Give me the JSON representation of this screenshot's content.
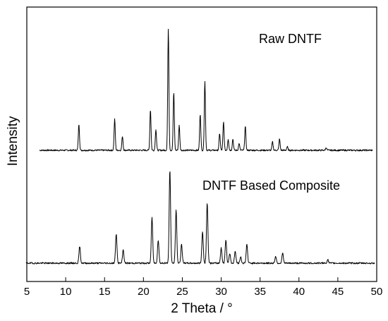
{
  "chart_data": {
    "type": "line",
    "xlabel": "2 Theta / °",
    "ylabel": "Intensity",
    "xlim": [
      5,
      50
    ],
    "x_ticks": [
      "5",
      "10",
      "15",
      "20",
      "25",
      "30",
      "35",
      "40",
      "45",
      "50"
    ],
    "y_ticks_shown": false,
    "grid": false,
    "annotations": [
      "Raw DNTF",
      "DNTF Based Composite"
    ],
    "series": [
      {
        "name": "Raw DNTF",
        "baseline": 0,
        "peaks": [
          {
            "x": 11.7,
            "y": 37
          },
          {
            "x": 16.3,
            "y": 44
          },
          {
            "x": 17.3,
            "y": 20
          },
          {
            "x": 20.9,
            "y": 58
          },
          {
            "x": 21.6,
            "y": 30
          },
          {
            "x": 23.2,
            "y": 172
          },
          {
            "x": 23.9,
            "y": 82
          },
          {
            "x": 24.6,
            "y": 35
          },
          {
            "x": 27.3,
            "y": 52
          },
          {
            "x": 27.9,
            "y": 98
          },
          {
            "x": 29.8,
            "y": 24
          },
          {
            "x": 30.3,
            "y": 40
          },
          {
            "x": 30.9,
            "y": 16
          },
          {
            "x": 31.5,
            "y": 16
          },
          {
            "x": 32.3,
            "y": 10
          },
          {
            "x": 33.1,
            "y": 34
          },
          {
            "x": 36.6,
            "y": 12
          },
          {
            "x": 37.5,
            "y": 16
          },
          {
            "x": 38.5,
            "y": 5
          },
          {
            "x": 43.5,
            "y": 4
          }
        ]
      },
      {
        "name": "DNTF Based Composite",
        "baseline": 0,
        "peaks": [
          {
            "x": 11.8,
            "y": 24
          },
          {
            "x": 16.5,
            "y": 42
          },
          {
            "x": 17.4,
            "y": 19
          },
          {
            "x": 21.1,
            "y": 65
          },
          {
            "x": 21.9,
            "y": 33
          },
          {
            "x": 23.4,
            "y": 133
          },
          {
            "x": 24.2,
            "y": 75
          },
          {
            "x": 24.9,
            "y": 27
          },
          {
            "x": 27.6,
            "y": 45
          },
          {
            "x": 28.2,
            "y": 86
          },
          {
            "x": 30.0,
            "y": 22
          },
          {
            "x": 30.6,
            "y": 33
          },
          {
            "x": 31.1,
            "y": 14
          },
          {
            "x": 31.8,
            "y": 17
          },
          {
            "x": 32.5,
            "y": 9
          },
          {
            "x": 33.3,
            "y": 27
          },
          {
            "x": 37.0,
            "y": 10
          },
          {
            "x": 37.9,
            "y": 14
          },
          {
            "x": 43.7,
            "y": 5
          }
        ]
      }
    ]
  }
}
